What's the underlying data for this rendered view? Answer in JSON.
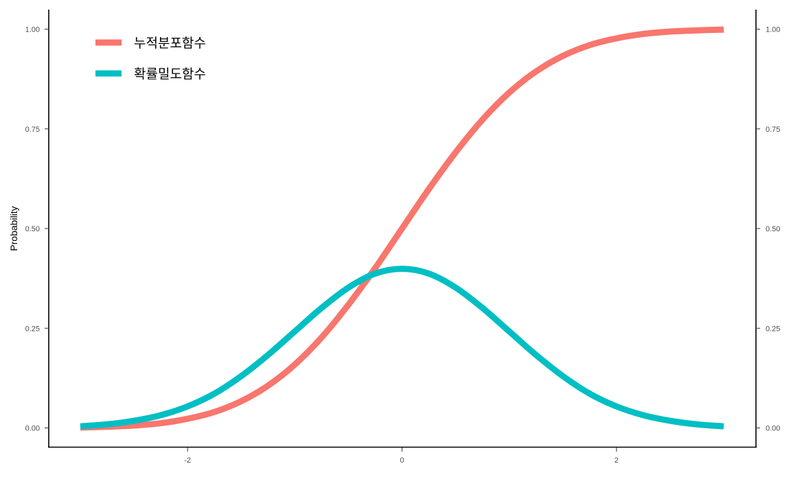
{
  "chart_data": {
    "type": "line",
    "title": "",
    "xlabel": "",
    "ylabel": "Probability",
    "xlim": [
      -3,
      3
    ],
    "ylim": [
      0,
      1
    ],
    "x_ticks": [
      -2,
      0,
      2
    ],
    "x_tick_labels": [
      "-2",
      "0",
      "2"
    ],
    "y_ticks": [
      0,
      0.25,
      0.5,
      0.75,
      1
    ],
    "y_tick_labels": [
      "0.00",
      "0.25",
      "0.50",
      "0.75",
      "1.00"
    ],
    "secondary_y_axis": true,
    "grid": false,
    "legend_position": "top-left",
    "x": [
      -3.0,
      -2.75,
      -2.5,
      -2.25,
      -2.0,
      -1.75,
      -1.5,
      -1.25,
      -1.0,
      -0.75,
      -0.5,
      -0.25,
      0.0,
      0.25,
      0.5,
      0.75,
      1.0,
      1.25,
      1.5,
      1.75,
      2.0,
      2.25,
      2.5,
      2.75,
      3.0
    ],
    "series": [
      {
        "name": "누적분포함수",
        "color": "#F8766D",
        "values": [
          0.001,
          0.003,
          0.006,
          0.012,
          0.023,
          0.04,
          0.067,
          0.106,
          0.159,
          0.227,
          0.309,
          0.401,
          0.5,
          0.599,
          0.691,
          0.773,
          0.841,
          0.894,
          0.933,
          0.96,
          0.977,
          0.988,
          0.994,
          0.997,
          0.999
        ]
      },
      {
        "name": "확률밀도함수",
        "color": "#00BFC4",
        "values": [
          0.004,
          0.009,
          0.018,
          0.032,
          0.054,
          0.086,
          0.13,
          0.183,
          0.242,
          0.301,
          0.352,
          0.387,
          0.399,
          0.387,
          0.352,
          0.301,
          0.242,
          0.183,
          0.13,
          0.086,
          0.054,
          0.032,
          0.018,
          0.009,
          0.004
        ]
      }
    ]
  }
}
